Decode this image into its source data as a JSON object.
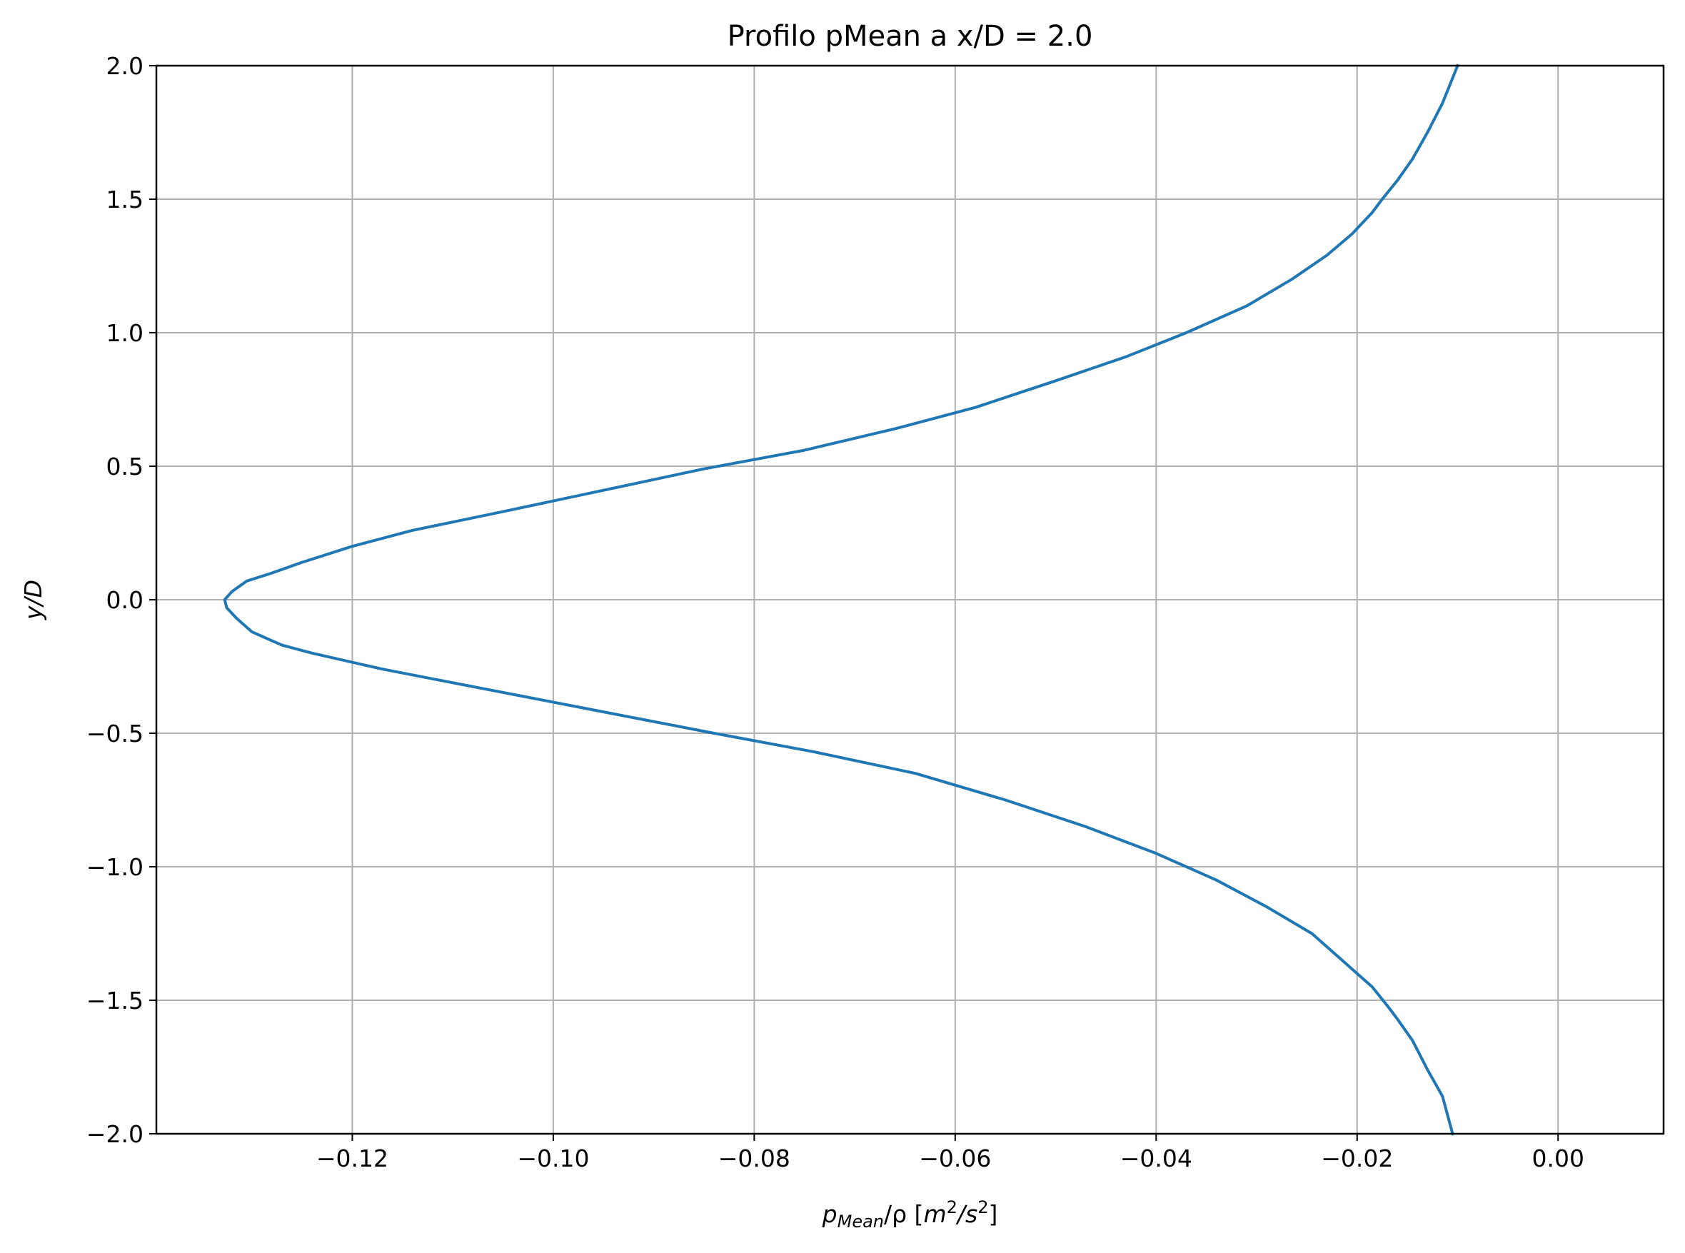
{
  "chart_data": {
    "type": "line",
    "title": "Profilo pMean a x/D = 2.0",
    "xlabel": {
      "p": "p",
      "sub": "Mean",
      "rest": "/ρ  [",
      "m": "m",
      "sup1": "2",
      "s": "/s",
      "sup2": "2",
      "close": "]"
    },
    "ylabel": "y/D",
    "xlim": [
      -0.1395,
      0.0105
    ],
    "ylim": [
      -2.0,
      2.0
    ],
    "xticks": [
      {
        "value": -0.12,
        "label": "−0.12"
      },
      {
        "value": -0.1,
        "label": "−0.10"
      },
      {
        "value": -0.08,
        "label": "−0.08"
      },
      {
        "value": -0.06,
        "label": "−0.06"
      },
      {
        "value": -0.04,
        "label": "−0.04"
      },
      {
        "value": -0.02,
        "label": "−0.02"
      },
      {
        "value": 0.0,
        "label": "0.00"
      }
    ],
    "yticks": [
      {
        "value": 2.0,
        "label": "2.0"
      },
      {
        "value": 1.5,
        "label": "1.5"
      },
      {
        "value": 1.0,
        "label": "1.0"
      },
      {
        "value": 0.5,
        "label": "0.5"
      },
      {
        "value": 0.0,
        "label": "0.0"
      },
      {
        "value": -0.5,
        "label": "−0.5"
      },
      {
        "value": -1.0,
        "label": "−1.0"
      },
      {
        "value": -1.5,
        "label": "−1.5"
      },
      {
        "value": -2.0,
        "label": "−2.0"
      }
    ],
    "grid": true,
    "series": [
      {
        "color": "#1f77b4",
        "points": [
          {
            "x": -0.0105,
            "y": -2.0
          },
          {
            "x": -0.0115,
            "y": -1.86
          },
          {
            "x": -0.013,
            "y": -1.76
          },
          {
            "x": -0.0145,
            "y": -1.65
          },
          {
            "x": -0.016,
            "y": -1.57
          },
          {
            "x": -0.017,
            "y": -1.52
          },
          {
            "x": -0.0185,
            "y": -1.45
          },
          {
            "x": -0.02,
            "y": -1.4
          },
          {
            "x": -0.0215,
            "y": -1.35
          },
          {
            "x": -0.0245,
            "y": -1.25
          },
          {
            "x": -0.029,
            "y": -1.15
          },
          {
            "x": -0.034,
            "y": -1.05
          },
          {
            "x": -0.04,
            "y": -0.95
          },
          {
            "x": -0.047,
            "y": -0.85
          },
          {
            "x": -0.055,
            "y": -0.75
          },
          {
            "x": -0.064,
            "y": -0.65
          },
          {
            "x": -0.074,
            "y": -0.57
          },
          {
            "x": -0.084,
            "y": -0.5
          },
          {
            "x": -0.095,
            "y": -0.42
          },
          {
            "x": -0.106,
            "y": -0.34
          },
          {
            "x": -0.117,
            "y": -0.26
          },
          {
            "x": -0.124,
            "y": -0.2
          },
          {
            "x": -0.127,
            "y": -0.17
          },
          {
            "x": -0.13,
            "y": -0.12
          },
          {
            "x": -0.1315,
            "y": -0.07
          },
          {
            "x": -0.1325,
            "y": -0.03
          },
          {
            "x": -0.1327,
            "y": 0.0
          },
          {
            "x": -0.132,
            "y": 0.03
          },
          {
            "x": -0.1305,
            "y": 0.07
          },
          {
            "x": -0.128,
            "y": 0.1
          },
          {
            "x": -0.125,
            "y": 0.14
          },
          {
            "x": -0.12,
            "y": 0.2
          },
          {
            "x": -0.114,
            "y": 0.26
          },
          {
            "x": -0.105,
            "y": 0.33
          },
          {
            "x": -0.095,
            "y": 0.41
          },
          {
            "x": -0.085,
            "y": 0.49
          },
          {
            "x": -0.075,
            "y": 0.56
          },
          {
            "x": -0.066,
            "y": 0.64
          },
          {
            "x": -0.058,
            "y": 0.72
          },
          {
            "x": -0.05,
            "y": 0.82
          },
          {
            "x": -0.043,
            "y": 0.91
          },
          {
            "x": -0.037,
            "y": 1.0
          },
          {
            "x": -0.031,
            "y": 1.1
          },
          {
            "x": -0.0265,
            "y": 1.2
          },
          {
            "x": -0.023,
            "y": 1.29
          },
          {
            "x": -0.0205,
            "y": 1.37
          },
          {
            "x": -0.0185,
            "y": 1.45
          },
          {
            "x": -0.0175,
            "y": 1.5
          },
          {
            "x": -0.016,
            "y": 1.57
          },
          {
            "x": -0.0145,
            "y": 1.65
          },
          {
            "x": -0.013,
            "y": 1.75
          },
          {
            "x": -0.0115,
            "y": 1.86
          },
          {
            "x": -0.01,
            "y": 2.0
          }
        ]
      }
    ]
  }
}
